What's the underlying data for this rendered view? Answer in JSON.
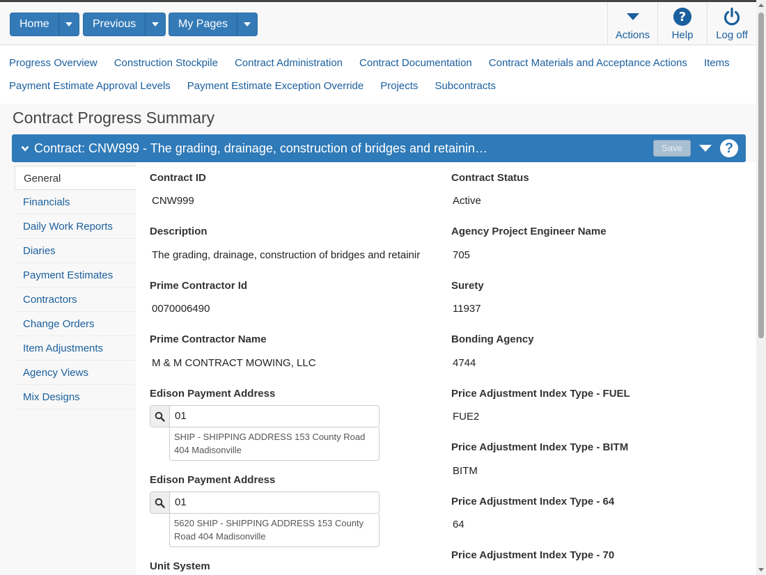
{
  "topbar": {
    "home_label": "Home",
    "previous_label": "Previous",
    "mypages_label": "My Pages",
    "actions_label": "Actions",
    "help_label": "Help",
    "logoff_label": "Log off"
  },
  "nav": {
    "row1": [
      "Progress Overview",
      "Construction Stockpile",
      "Contract Administration",
      "Contract Documentation",
      "Contract Materials and Acceptance Actions",
      "Items"
    ],
    "row2": [
      "Payment Estimate Approval Levels",
      "Payment Estimate Exception Override",
      "Projects",
      "Subcontracts"
    ]
  },
  "page": {
    "title": "Contract Progress Summary"
  },
  "panel": {
    "title": "Contract: CNW999 - The grading, drainage, construction of bridges and retainin…",
    "save_label": "Save",
    "help_glyph": "?"
  },
  "sidebar": {
    "items": [
      "General",
      "Financials",
      "Daily Work Reports",
      "Diaries",
      "Payment Estimates",
      "Contractors",
      "Change Orders",
      "Item Adjustments",
      "Agency Views",
      "Mix Designs"
    ],
    "active": "General"
  },
  "fields": {
    "contract_id": {
      "label": "Contract ID",
      "value": "CNW999"
    },
    "description": {
      "label": "Description",
      "value": "The grading, drainage, construction of bridges and retainir"
    },
    "prime_contractor_id": {
      "label": "Prime Contractor Id",
      "value": "0070006490"
    },
    "prime_contractor_name": {
      "label": "Prime Contractor Name",
      "value": "M & M CONTRACT MOWING, LLC"
    },
    "edison_payment_address_1": {
      "label": "Edison Payment Address",
      "value": "01",
      "desc_line1": "SHIP - SHIPPING ADDRESS 153 County Road",
      "desc_line2": "404 Madisonville"
    },
    "edison_payment_address_2": {
      "label": "Edison Payment Address",
      "value": "01",
      "desc_line1": "5620 SHIP - SHIPPING ADDRESS 153 County",
      "desc_line2": "Road 404 Madisonville"
    },
    "unit_system": {
      "label": "Unit System"
    },
    "contract_status": {
      "label": "Contract Status",
      "value": "Active"
    },
    "agency_project_engineer_name": {
      "label": "Agency Project Engineer Name",
      "value": "705"
    },
    "surety": {
      "label": "Surety",
      "value": "11937"
    },
    "bonding_agency": {
      "label": "Bonding Agency",
      "value": "4744"
    },
    "pai_fuel": {
      "label": "Price Adjustment Index Type - FUEL",
      "value": "FUE2"
    },
    "pai_bitm": {
      "label": "Price Adjustment Index Type - BITM",
      "value": "BITM"
    },
    "pai_64": {
      "label": "Price Adjustment Index Type - 64",
      "value": "64"
    },
    "pai_70": {
      "label": "Price Adjustment Index Type - 70"
    }
  },
  "colors": {
    "primary": "#337ab7",
    "panel_header": "#2f7ab8",
    "link": "#1a5f9e"
  }
}
